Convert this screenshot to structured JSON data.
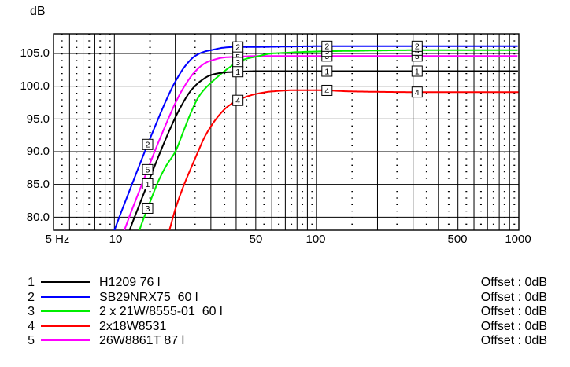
{
  "chart_data": {
    "type": "line",
    "title": "",
    "x_axis": {
      "scale": "log",
      "min": 5,
      "max": 1000,
      "unit": "Hz",
      "tick_values": [
        5,
        10,
        50,
        100,
        500,
        1000
      ],
      "tick_labels": [
        "5 Hz",
        "10",
        "50",
        "100",
        "500",
        "1000"
      ]
    },
    "y_axis": {
      "unit": "dB",
      "min": 78,
      "max": 108,
      "major_step": 5,
      "tick_values": [
        105,
        100,
        95,
        90,
        85,
        80
      ],
      "tick_labels": [
        "105.0",
        "100.0",
        "95.0",
        "90.0",
        "85.0",
        "80.0"
      ]
    },
    "grid": {
      "major": "solid",
      "minor": "dotted",
      "minor_db_step": 1
    },
    "marker_frequencies": [
      14.6,
      40.8,
      112.5,
      314
    ],
    "series": [
      {
        "id": "1",
        "name": "H1209 76 l",
        "color": "#000000",
        "offset": "Offset : 0dB",
        "points": [
          [
            11,
            74.5
          ],
          [
            11.9,
            78
          ],
          [
            13,
            81.1
          ],
          [
            15,
            86
          ],
          [
            17,
            90.2
          ],
          [
            19,
            93.7
          ],
          [
            21,
            96.5
          ],
          [
            24,
            99.4
          ],
          [
            27,
            100.9
          ],
          [
            30,
            101.7
          ],
          [
            35,
            102.1
          ],
          [
            40,
            102.2
          ],
          [
            50,
            102.3
          ],
          [
            100,
            102.3
          ],
          [
            1000,
            102.3
          ]
        ]
      },
      {
        "id": "2",
        "name": "SB29NRX75  60 l",
        "color": "#0000ff",
        "offset": "Offset : 0dB",
        "points": [
          [
            9,
            74
          ],
          [
            10,
            78
          ],
          [
            11,
            81.4
          ],
          [
            12,
            84.4
          ],
          [
            14,
            89.7
          ],
          [
            16,
            94.1
          ],
          [
            18,
            97.8
          ],
          [
            20,
            100.7
          ],
          [
            22.4,
            103.1
          ],
          [
            25,
            104.6
          ],
          [
            28,
            105.3
          ],
          [
            30,
            105.5
          ],
          [
            35,
            105.9
          ],
          [
            40,
            106
          ],
          [
            50,
            106
          ],
          [
            100,
            106.1
          ],
          [
            1000,
            106.1
          ]
        ]
      },
      {
        "id": "3",
        "name": "2 x 21W/8555-01  60 l",
        "color": "#00ee00",
        "offset": "Offset : 0dB",
        "points": [
          [
            12.2,
            74
          ],
          [
            13.3,
            78
          ],
          [
            14.7,
            81.6
          ],
          [
            16.5,
            85.5
          ],
          [
            18,
            87.8
          ],
          [
            20,
            90
          ],
          [
            22,
            93.2
          ],
          [
            24,
            96.1
          ],
          [
            26,
            98.3
          ],
          [
            28,
            99.6
          ],
          [
            30,
            100.5
          ],
          [
            32,
            101.3
          ],
          [
            35,
            102.3
          ],
          [
            38,
            103.1
          ],
          [
            40,
            103.5
          ],
          [
            45,
            104.2
          ],
          [
            50,
            104.5
          ],
          [
            60,
            105
          ],
          [
            70,
            105.1
          ],
          [
            80,
            105.2
          ],
          [
            100,
            105.3
          ],
          [
            150,
            105.4
          ],
          [
            300,
            105.5
          ],
          [
            1000,
            105.5
          ]
        ]
      },
      {
        "id": "4",
        "name": "2x18W8531",
        "color": "#ff0000",
        "offset": "Offset : 0dB",
        "points": [
          [
            17,
            74
          ],
          [
            18.7,
            78
          ],
          [
            20,
            81.2
          ],
          [
            22,
            84.8
          ],
          [
            24,
            87.6
          ],
          [
            26,
            90.1
          ],
          [
            28,
            92.3
          ],
          [
            30.5,
            94.2
          ],
          [
            33,
            95.6
          ],
          [
            36,
            96.8
          ],
          [
            40,
            97.7
          ],
          [
            45,
            98.4
          ],
          [
            50,
            98.8
          ],
          [
            60,
            99.2
          ],
          [
            80,
            99.4
          ],
          [
            100,
            99.4
          ],
          [
            150,
            99.2
          ],
          [
            300,
            99.1
          ],
          [
            1000,
            99.1
          ]
        ]
      },
      {
        "id": "5",
        "name": "26W8861T 87 l",
        "color": "#ff00ff",
        "offset": "Offset : 0dB",
        "points": [
          [
            10,
            74.2
          ],
          [
            11.2,
            78
          ],
          [
            12,
            80.5
          ],
          [
            14,
            85.8
          ],
          [
            16,
            90.4
          ],
          [
            18,
            94.2
          ],
          [
            20,
            97.4
          ],
          [
            22,
            99.8
          ],
          [
            25,
            102.2
          ],
          [
            28,
            103.5
          ],
          [
            30,
            103.9
          ],
          [
            35,
            104.4
          ],
          [
            40,
            104.5
          ],
          [
            50,
            104.6
          ],
          [
            100,
            104.6
          ],
          [
            1000,
            104.6
          ]
        ]
      }
    ]
  }
}
